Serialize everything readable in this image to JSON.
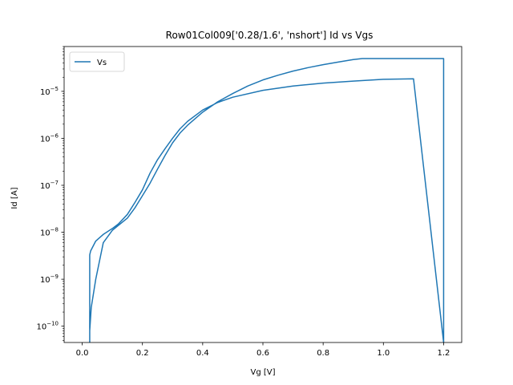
{
  "chart_data": {
    "type": "line",
    "title": "Row01Col009['0.28/1.6', 'nshort'] Id vs Vgs",
    "xlabel": "Vg [V]",
    "ylabel": "Id [A]",
    "xlim": [
      -0.06,
      1.26
    ],
    "ylim": [
      4.5e-11,
      9e-05
    ],
    "yscale": "log",
    "x_ticks": [
      0.0,
      0.2,
      0.4,
      0.6,
      0.8,
      1.0,
      1.2
    ],
    "x_tick_labels": [
      "0.0",
      "0.2",
      "0.4",
      "0.6",
      "0.8",
      "1.0",
      "1.2"
    ],
    "y_ticks": [
      {
        "value": 1e-10,
        "base": "10",
        "exp": "−10"
      },
      {
        "value": 1e-09,
        "base": "10",
        "exp": "−9"
      },
      {
        "value": 1e-08,
        "base": "10",
        "exp": "−8"
      },
      {
        "value": 1e-07,
        "base": "10",
        "exp": "−7"
      },
      {
        "value": 1e-06,
        "base": "10",
        "exp": "−6"
      },
      {
        "value": 1e-05,
        "base": "10",
        "exp": "−5"
      }
    ],
    "legend": {
      "placement": "top-left",
      "entries": [
        "Vs"
      ]
    },
    "grid": false,
    "color": "#1f77b4",
    "series": [
      {
        "name": "Vs",
        "x": [
          0.025,
          0.025,
          0.03,
          0.045,
          0.07,
          0.1,
          0.12,
          0.15,
          0.175,
          0.2,
          0.225,
          0.25,
          0.275,
          0.3,
          0.325,
          0.35,
          0.4,
          0.45,
          0.5,
          0.55,
          0.6,
          0.65,
          0.7,
          0.75,
          0.8,
          0.85,
          0.9,
          0.93,
          1.0,
          1.1,
          1.2,
          1.2,
          1.1,
          1.0,
          0.9,
          0.8,
          0.7,
          0.6,
          0.5,
          0.45,
          0.4,
          0.35,
          0.325,
          0.3,
          0.275,
          0.25,
          0.225,
          0.2,
          0.175,
          0.15,
          0.12,
          0.1,
          0.07,
          0.045,
          0.028,
          0.025,
          0.025
        ],
        "y": [
          4.5e-11,
          8e-11,
          2.5e-10,
          1e-09,
          6e-09,
          1.1e-08,
          1.4e-08,
          2e-08,
          3.3e-08,
          6e-08,
          1.1e-07,
          2.2e-07,
          4.3e-07,
          8e-07,
          1.3e-06,
          1.9e-06,
          3.6e-06,
          6e-06,
          9e-06,
          1.3e-05,
          1.75e-05,
          2.2e-05,
          2.7e-05,
          3.2e-05,
          3.7e-05,
          4.2e-05,
          4.75e-05,
          5e-05,
          5e-05,
          5e-05,
          5e-05,
          4.5e-11,
          1.85e-05,
          1.8e-05,
          1.65e-05,
          1.5e-05,
          1.3e-05,
          1.05e-05,
          7.5e-06,
          5.8e-06,
          4e-06,
          2.3e-06,
          1.6e-06,
          1e-06,
          6e-07,
          3.5e-07,
          1.8e-07,
          8e-08,
          4.3e-08,
          2.4e-08,
          1.5e-08,
          1.2e-08,
          9e-09,
          6.5e-09,
          4e-09,
          3.3e-09,
          4.5e-11
        ]
      }
    ]
  }
}
